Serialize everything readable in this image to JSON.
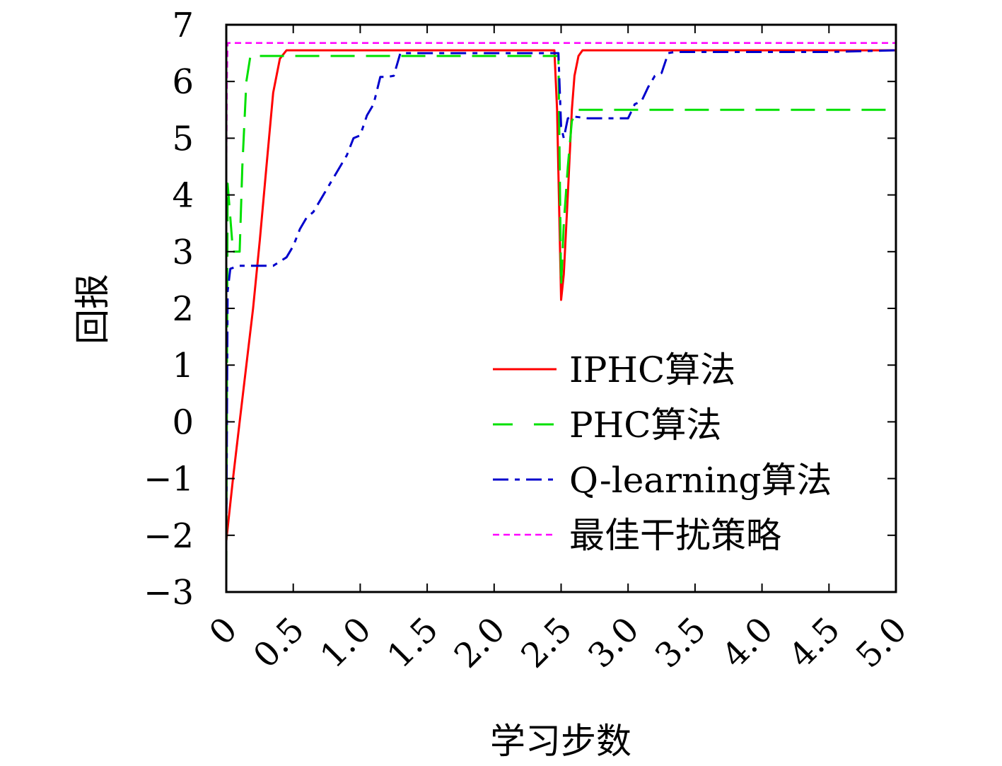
{
  "chart_data": {
    "type": "line",
    "title": "",
    "xlabel": "学习步数",
    "ylabel": "回报",
    "xlim": [
      0,
      5.0
    ],
    "ylim": [
      -3,
      7
    ],
    "x_ticks": [
      "0",
      "0.5",
      "1.0",
      "1.5",
      "2.0",
      "2.5",
      "3.0",
      "3.5",
      "4.0",
      "4.5",
      "5.0"
    ],
    "y_ticks": [
      "−3",
      "−2",
      "−1",
      "0",
      "1",
      "2",
      "3",
      "4",
      "5",
      "6",
      "7"
    ],
    "grid": false,
    "legend_position": "lower-right",
    "series": [
      {
        "name": "IPHC算法",
        "color": "#ff0000",
        "style": "solid",
        "x": [
          0,
          0.05,
          0.1,
          0.15,
          0.2,
          0.25,
          0.3,
          0.35,
          0.4,
          0.45,
          0.5,
          1.0,
          1.5,
          2.0,
          2.45,
          2.47,
          2.5,
          2.52,
          2.55,
          2.58,
          2.6,
          2.63,
          2.66,
          2.7,
          2.75,
          3.0,
          3.5,
          4.0,
          4.5,
          5.0
        ],
        "y": [
          -2.1,
          -1.0,
          0.0,
          1.0,
          2.0,
          3.2,
          4.5,
          5.8,
          6.4,
          6.55,
          6.55,
          6.55,
          6.55,
          6.55,
          6.55,
          5.5,
          2.15,
          2.6,
          4.0,
          5.5,
          6.1,
          6.45,
          6.55,
          6.55,
          6.55,
          6.55,
          6.55,
          6.55,
          6.55,
          6.55
        ]
      },
      {
        "name": "PHC算法",
        "color": "#00e000",
        "style": "dashed",
        "x": [
          0,
          0.01,
          0.05,
          0.1,
          0.12,
          0.15,
          0.18,
          0.2,
          0.25,
          0.5,
          1.0,
          1.5,
          2.0,
          2.48,
          2.5,
          2.52,
          2.55,
          2.58,
          2.62,
          2.65,
          2.7,
          3.0,
          3.5,
          4.0,
          4.5,
          5.0
        ],
        "y": [
          -2.7,
          4.2,
          3.0,
          3.0,
          4.5,
          6.0,
          6.45,
          6.45,
          6.45,
          6.45,
          6.45,
          6.45,
          6.45,
          6.45,
          2.4,
          3.5,
          4.5,
          5.3,
          5.5,
          5.5,
          5.5,
          5.5,
          5.5,
          5.5,
          5.5,
          5.5
        ]
      },
      {
        "name": "Q-learning算法",
        "color": "#0000cc",
        "style": "dashdot",
        "x": [
          0,
          0.01,
          0.03,
          0.1,
          0.2,
          0.35,
          0.45,
          0.5,
          0.55,
          0.6,
          0.65,
          0.75,
          0.85,
          0.9,
          0.95,
          1.0,
          1.05,
          1.1,
          1.15,
          1.2,
          1.25,
          1.3,
          1.35,
          1.5,
          2.0,
          2.48,
          2.5,
          2.52,
          2.55,
          2.6,
          2.7,
          2.8,
          2.9,
          3.0,
          3.05,
          3.1,
          3.15,
          3.2,
          3.25,
          3.3,
          3.35,
          3.5,
          4.0,
          4.5,
          5.0
        ],
        "y": [
          -2.2,
          2.3,
          2.7,
          2.75,
          2.75,
          2.75,
          2.9,
          3.1,
          3.4,
          3.6,
          3.7,
          4.1,
          4.5,
          4.7,
          5.0,
          5.05,
          5.4,
          5.6,
          6.08,
          6.08,
          6.1,
          6.5,
          6.5,
          6.5,
          6.5,
          6.5,
          5.2,
          5.0,
          5.35,
          5.38,
          5.35,
          5.35,
          5.35,
          5.35,
          5.6,
          5.65,
          5.9,
          6.1,
          6.15,
          6.5,
          6.52,
          6.52,
          6.52,
          6.52,
          6.55
        ]
      },
      {
        "name": "最佳干扰策略",
        "color": "#ff00ff",
        "style": "dotted",
        "x": [
          0,
          0.005,
          0.01,
          0.5,
          1.0,
          1.5,
          2.0,
          2.5,
          3.0,
          3.5,
          4.0,
          4.5,
          5.0
        ],
        "y": [
          4.0,
          6.0,
          6.68,
          6.68,
          6.68,
          6.68,
          6.68,
          6.68,
          6.68,
          6.68,
          6.68,
          6.68,
          6.68
        ]
      }
    ]
  }
}
